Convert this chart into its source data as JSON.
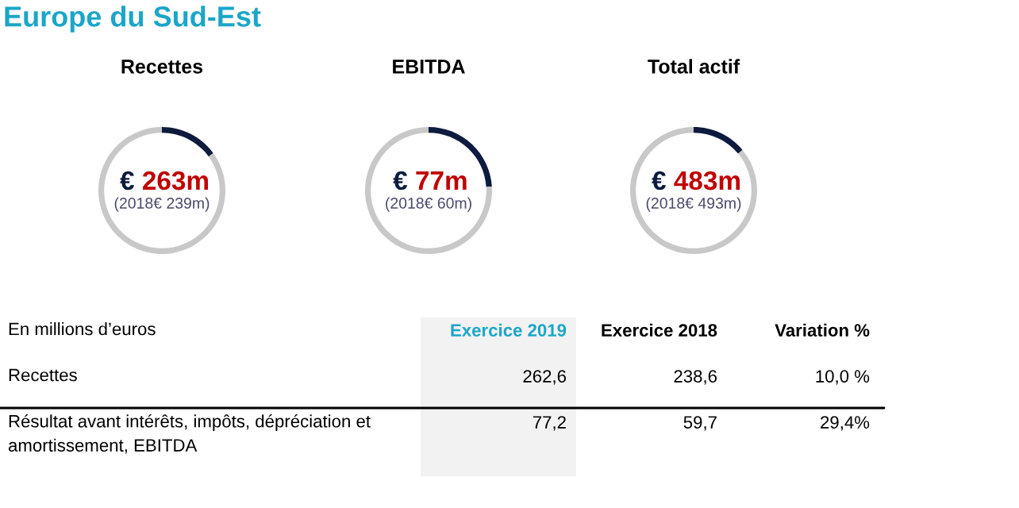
{
  "chart_data": [
    {
      "type": "other",
      "title": "Europe du Sud-Est"
    },
    {
      "type": "donut",
      "title": "Recettes",
      "categories": [
        null,
        null
      ],
      "values": [
        15,
        85
      ],
      "colors": [
        "#0d1b3e",
        "#c8c8c8"
      ],
      "annotations": [
        "€ 263m",
        "(2018€ 239m)"
      ]
    },
    {
      "type": "donut",
      "title": "EBITDA",
      "categories": [
        null,
        null
      ],
      "values": [
        24,
        76
      ],
      "colors": [
        "#0d1b3e",
        "#c8c8c8"
      ],
      "annotations": [
        "€ 77m",
        "(2018€ 60m)"
      ]
    },
    {
      "type": "donut",
      "title": "Total actif",
      "categories": [
        null,
        null
      ],
      "values": [
        14,
        86
      ],
      "colors": [
        "#0d1b3e",
        "#c8c8c8"
      ],
      "annotations": [
        "€ 483m",
        "(2018€ 493m)"
      ]
    },
    {
      "type": "other",
      "annotations": [
        "En millions d’euros",
        "Exercice 2019",
        "Exercice 2018",
        "Variation %",
        "Recettes",
        "262,6",
        "238,6",
        "10,0 %",
        "Résultat avant intérêts, impôts, dépréciation et amortissement, EBITDA",
        "77,2",
        "59,7",
        "29,4%"
      ]
    }
  ]
}
